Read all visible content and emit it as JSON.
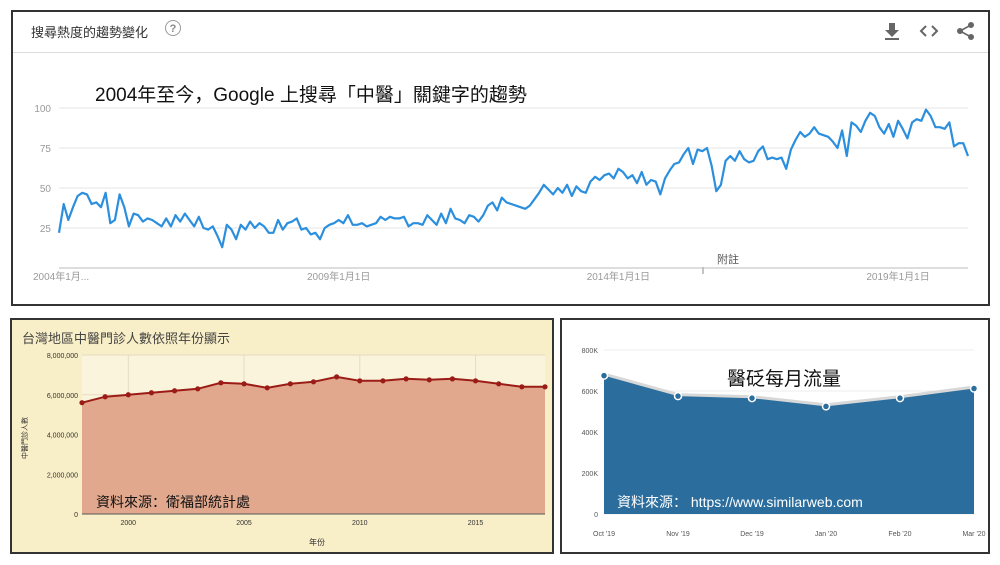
{
  "panel_top": {
    "header_title": "搜尋熱度的趨勢變化",
    "help_icon": "question-icon",
    "tools": [
      "download-icon",
      "embed-icon",
      "share-icon"
    ],
    "overlay_title": "2004年至今，Google 上搜尋「中醫」關鍵字的趨勢",
    "note_label": "附註"
  },
  "panel_left": {
    "title": "台灣地區中醫門診人數依照年份顯示",
    "source": "資料來源：衛福部統計處"
  },
  "panel_right": {
    "overlay_title": "醫砭每月流量",
    "source": "資料來源： https://www.similarweb.com"
  },
  "chart_data": [
    {
      "type": "line",
      "title": "",
      "color": "#2b8fde",
      "x_tick_labels": [
        "2004年1月...",
        "2009年1月1日",
        "2014年1月1日",
        "2019年1月1日"
      ],
      "y_ticks": [
        25,
        50,
        75,
        100
      ],
      "ylim": [
        0,
        100
      ],
      "grid": true,
      "series": [
        {
          "values": [
            22,
            40,
            30,
            38,
            45,
            47,
            46,
            40,
            41,
            38,
            47,
            28,
            30,
            46,
            38,
            26,
            34,
            33,
            29,
            31,
            30,
            28,
            26,
            31,
            26,
            33,
            29,
            34,
            30,
            26,
            32,
            25,
            24,
            26,
            20,
            13,
            27,
            24,
            18,
            27,
            24,
            29,
            25,
            28,
            26,
            22,
            22,
            30,
            24,
            28,
            29,
            31,
            24,
            25,
            21,
            22,
            18,
            25,
            27,
            28,
            30,
            28,
            33,
            27,
            27,
            28,
            26,
            27,
            28,
            32,
            30,
            32,
            31,
            31,
            32,
            26,
            28,
            28,
            27,
            33,
            30,
            27,
            34,
            28,
            37,
            31,
            30,
            28,
            33,
            32,
            29,
            33,
            39,
            41,
            36,
            44,
            41,
            40,
            39,
            38,
            37,
            39,
            43,
            47,
            52,
            49,
            46,
            50,
            47,
            52,
            45,
            51,
            48,
            47,
            54,
            57,
            55,
            58,
            59,
            56,
            62,
            60,
            56,
            58,
            53,
            60,
            52,
            55,
            54,
            46,
            56,
            61,
            65,
            66,
            71,
            75,
            65,
            74,
            73,
            75,
            64,
            48,
            52,
            67,
            70,
            67,
            73,
            68,
            66,
            67,
            73,
            76,
            68,
            69,
            68,
            69,
            62,
            74,
            80,
            85,
            82,
            84,
            88,
            84,
            83,
            82,
            79,
            75,
            86,
            70,
            91,
            89,
            85,
            92,
            97,
            95,
            88,
            84,
            90,
            82,
            92,
            87,
            81,
            91,
            93,
            92,
            99,
            95,
            88,
            88,
            87,
            91,
            76,
            78,
            78,
            70
          ]
        }
      ]
    },
    {
      "type": "area",
      "title": "台灣地區中醫門診人數依照年份顯示",
      "xlabel": "年份",
      "ylabel": "中醫門診人數",
      "x_tick_labels": [
        "2000",
        "2005",
        "2010",
        "2015"
      ],
      "y_tick_labels": [
        "0",
        "2,000,000",
        "4,000,000",
        "6,000,000",
        "8,000,000"
      ],
      "ylim": [
        0,
        8000000
      ],
      "fill": "#e2a88e",
      "line_color": "#9b1c16",
      "x": [
        1998,
        1999,
        2000,
        2001,
        2002,
        2003,
        2004,
        2005,
        2006,
        2007,
        2008,
        2009,
        2010,
        2011,
        2012,
        2013,
        2014,
        2015,
        2016,
        2017,
        2018
      ],
      "values": [
        5600000,
        5900000,
        6000000,
        6100000,
        6200000,
        6300000,
        6600000,
        6550000,
        6350000,
        6550000,
        6650000,
        6900000,
        6700000,
        6700000,
        6800000,
        6750000,
        6800000,
        6700000,
        6550000,
        6400000,
        6400000
      ]
    },
    {
      "type": "area",
      "title": "醫砭每月流量",
      "categories": [
        "Oct '19",
        "Nov '19",
        "Dec '19",
        "Jan '20",
        "Feb '20",
        "Mar '20"
      ],
      "y_tick_labels": [
        "0",
        "200K",
        "400K",
        "600K",
        "800K"
      ],
      "ylim": [
        0,
        800000
      ],
      "fill": "#2b6e9e",
      "values": [
        675000,
        575000,
        565000,
        525000,
        565000,
        612000
      ]
    }
  ]
}
